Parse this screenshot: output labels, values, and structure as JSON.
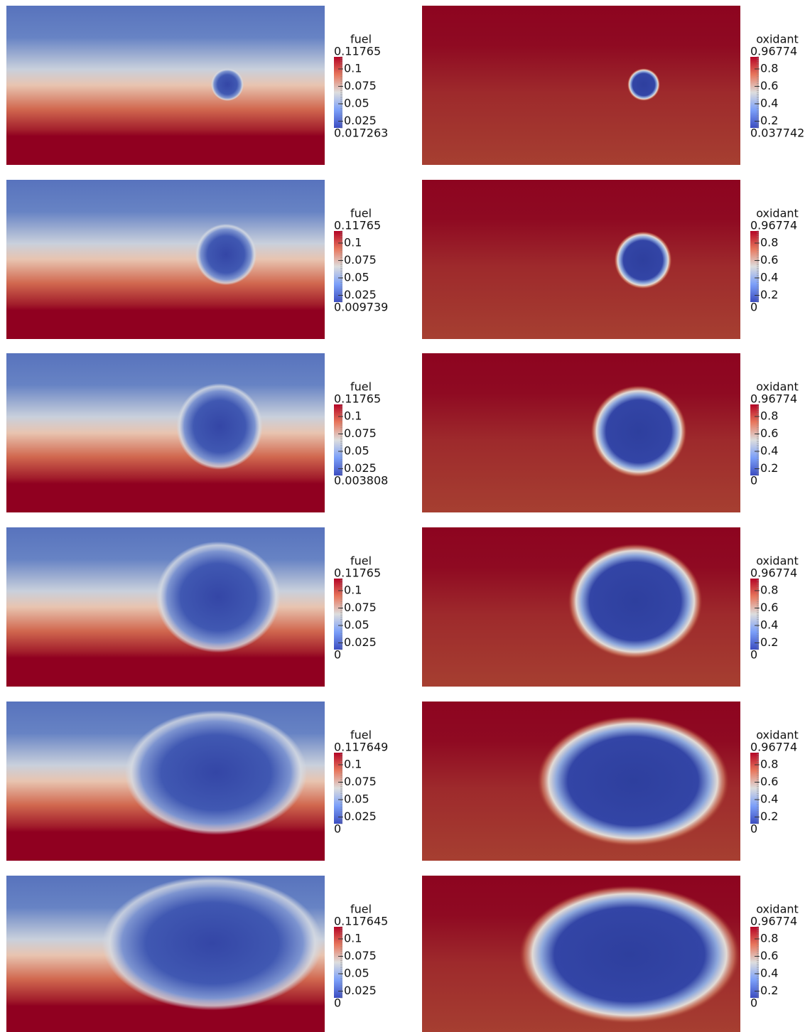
{
  "panels": [
    {
      "fuel": {
        "title": "fuel",
        "max": "0.11765",
        "ticks": [
          "0.1",
          "0.075",
          "0.05",
          "0.025"
        ],
        "min": "0.017263"
      },
      "oxidant": {
        "title": "oxidant",
        "max": "0.96774",
        "ticks": [
          "0.8",
          "0.6",
          "0.4",
          "0.2"
        ],
        "min": "0.037742"
      }
    },
    {
      "fuel": {
        "title": "fuel",
        "max": "0.11765",
        "ticks": [
          "0.1",
          "0.075",
          "0.05",
          "0.025"
        ],
        "min": "0.009739"
      },
      "oxidant": {
        "title": "oxidant",
        "max": "0.96774",
        "ticks": [
          "0.8",
          "0.6",
          "0.4",
          "0.2"
        ],
        "min": "0"
      }
    },
    {
      "fuel": {
        "title": "fuel",
        "max": "0.11765",
        "ticks": [
          "0.1",
          "0.075",
          "0.05",
          "0.025"
        ],
        "min": "0.003808"
      },
      "oxidant": {
        "title": "oxidant",
        "max": "0.96774",
        "ticks": [
          "0.8",
          "0.6",
          "0.4",
          "0.2"
        ],
        "min": "0"
      }
    },
    {
      "fuel": {
        "title": "fuel",
        "max": "0.11765",
        "ticks": [
          "0.1",
          "0.075",
          "0.05",
          "0.025"
        ],
        "min": "0"
      },
      "oxidant": {
        "title": "oxidant",
        "max": "0.96774",
        "ticks": [
          "0.8",
          "0.6",
          "0.4",
          "0.2"
        ],
        "min": "0"
      }
    },
    {
      "fuel": {
        "title": "fuel",
        "max": "0.117649",
        "ticks": [
          "0.1",
          "0.075",
          "0.05",
          "0.025"
        ],
        "min": "0"
      },
      "oxidant": {
        "title": "oxidant",
        "max": "0.96774",
        "ticks": [
          "0.8",
          "0.6",
          "0.4",
          "0.2"
        ],
        "min": "0"
      }
    },
    {
      "fuel": {
        "title": "fuel",
        "max": "0.117645",
        "ticks": [
          "0.1",
          "0.075",
          "0.05",
          "0.025"
        ],
        "min": "0"
      },
      "oxidant": {
        "title": "oxidant",
        "max": "0.96774",
        "ticks": [
          "0.8",
          "0.6",
          "0.4",
          "0.2"
        ],
        "min": "0"
      }
    }
  ]
}
